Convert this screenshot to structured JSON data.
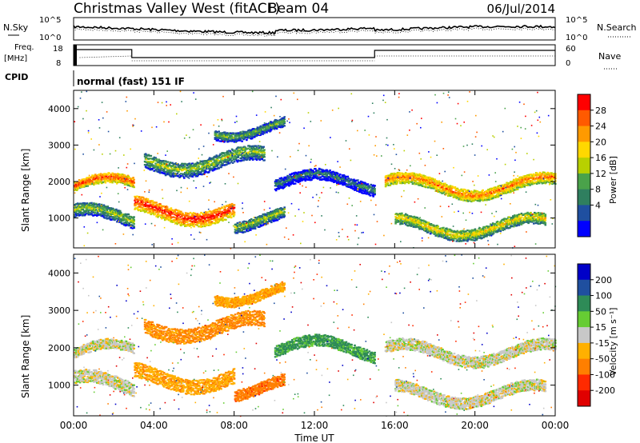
{
  "header": {
    "station": "Christmas Valley West (fitACF)",
    "beam": "Beam 04",
    "date": "06/Jul/2014"
  },
  "noise_panel": {
    "left_label": "N.Sky",
    "right_label": "N.Search",
    "left_ticks": [
      "10^5",
      "10^0"
    ],
    "right_ticks": [
      "10^5",
      "10^0"
    ]
  },
  "freq_panel": {
    "left_label_1": "Freq.",
    "left_label_2": "[MHz]",
    "right_label": "Nave",
    "left_ticks": [
      "18",
      "8"
    ],
    "right_ticks": [
      "60",
      "0"
    ]
  },
  "cpid": {
    "label": "CPID",
    "mode": "normal (fast) 151 IF"
  },
  "colors": {
    "noise_line": "#000000",
    "background": "#ffffff",
    "no_data": "#ffffff"
  },
  "chart_data": [
    {
      "type": "heatmap",
      "panel": "power",
      "ylabel": "Slant Range [km]",
      "xlabel": "Time UT",
      "y_ticks": [
        1000,
        2000,
        3000,
        4000
      ],
      "ylim": [
        180,
        4500
      ],
      "x_ticks": [
        "00:00",
        "04:00",
        "08:00",
        "12:00",
        "16:00",
        "20:00",
        "00:00"
      ],
      "xlim_hours": [
        0,
        24
      ],
      "colorbar": {
        "label": "Power [dB]",
        "ticks": [
          "28",
          "24",
          "20",
          "16",
          "12",
          "8",
          "4"
        ],
        "colors": [
          "#ff0000",
          "#ff5a00",
          "#ff9a00",
          "#ffd800",
          "#b8d000",
          "#4aa24a",
          "#2f7f5f",
          "#1f4fa0",
          "#0000ff"
        ]
      },
      "echo_bands": [
        {
          "t_start": 0.0,
          "t_end": 3.0,
          "r_center": 1900,
          "r_width": 250,
          "power_db": 26
        },
        {
          "t_start": 0.0,
          "t_end": 3.0,
          "r_center": 1050,
          "r_width": 350,
          "power_db": 14
        },
        {
          "t_start": 3.0,
          "t_end": 8.0,
          "r_center": 1250,
          "r_width": 400,
          "power_db": 28
        },
        {
          "t_start": 3.5,
          "t_end": 9.5,
          "r_center": 2600,
          "r_width": 400,
          "power_db": 14
        },
        {
          "t_start": 7.0,
          "t_end": 10.5,
          "r_center": 3500,
          "r_width": 250,
          "power_db": 12
        },
        {
          "t_start": 8.0,
          "t_end": 10.5,
          "r_center": 1000,
          "r_width": 300,
          "power_db": 14
        },
        {
          "t_start": 10.0,
          "t_end": 15.0,
          "r_center": 2000,
          "r_width": 300,
          "power_db": 8
        },
        {
          "t_start": 15.5,
          "t_end": 24.0,
          "r_center": 1900,
          "r_width": 300,
          "power_db": 24
        },
        {
          "t_start": 16.0,
          "t_end": 23.5,
          "r_center": 800,
          "r_width": 300,
          "power_db": 18
        }
      ]
    },
    {
      "type": "heatmap",
      "panel": "velocity",
      "ylabel": "Slant Range [km]",
      "xlabel": "Time UT",
      "y_ticks": [
        1000,
        2000,
        3000,
        4000
      ],
      "ylim": [
        180,
        4500
      ],
      "x_ticks": [
        "00:00",
        "04:00",
        "08:00",
        "12:00",
        "16:00",
        "20:00",
        "00:00"
      ],
      "xlim_hours": [
        0,
        24
      ],
      "colorbar": {
        "label": "Velocity [m s⁻¹]",
        "ticks": [
          "200",
          "100",
          "50",
          "15",
          "-15",
          "-50",
          "-100",
          "-200"
        ],
        "colors": [
          "#0000c8",
          "#1f4f9f",
          "#2e8b57",
          "#66cc33",
          "#c8c8c8",
          "#ffb000",
          "#ff7f00",
          "#ff2a00",
          "#e00000"
        ]
      },
      "echo_bands": [
        {
          "t_start": 0.0,
          "t_end": 3.0,
          "r_center": 1900,
          "r_width": 250,
          "velocity": 0
        },
        {
          "t_start": 0.0,
          "t_end": 3.0,
          "r_center": 1050,
          "r_width": 350,
          "velocity": 0
        },
        {
          "t_start": 3.0,
          "t_end": 8.0,
          "r_center": 1250,
          "r_width": 400,
          "velocity": -40
        },
        {
          "t_start": 3.5,
          "t_end": 9.5,
          "r_center": 2600,
          "r_width": 400,
          "velocity": -60
        },
        {
          "t_start": 7.0,
          "t_end": 10.5,
          "r_center": 3500,
          "r_width": 250,
          "velocity": -40
        },
        {
          "t_start": 8.0,
          "t_end": 10.5,
          "r_center": 1000,
          "r_width": 300,
          "velocity": -80
        },
        {
          "t_start": 10.0,
          "t_end": 15.0,
          "r_center": 2000,
          "r_width": 300,
          "velocity": 40
        },
        {
          "t_start": 15.5,
          "t_end": 24.0,
          "r_center": 1900,
          "r_width": 300,
          "velocity": 0
        },
        {
          "t_start": 16.0,
          "t_end": 23.5,
          "r_center": 800,
          "r_width": 300,
          "velocity": 0
        }
      ]
    }
  ]
}
